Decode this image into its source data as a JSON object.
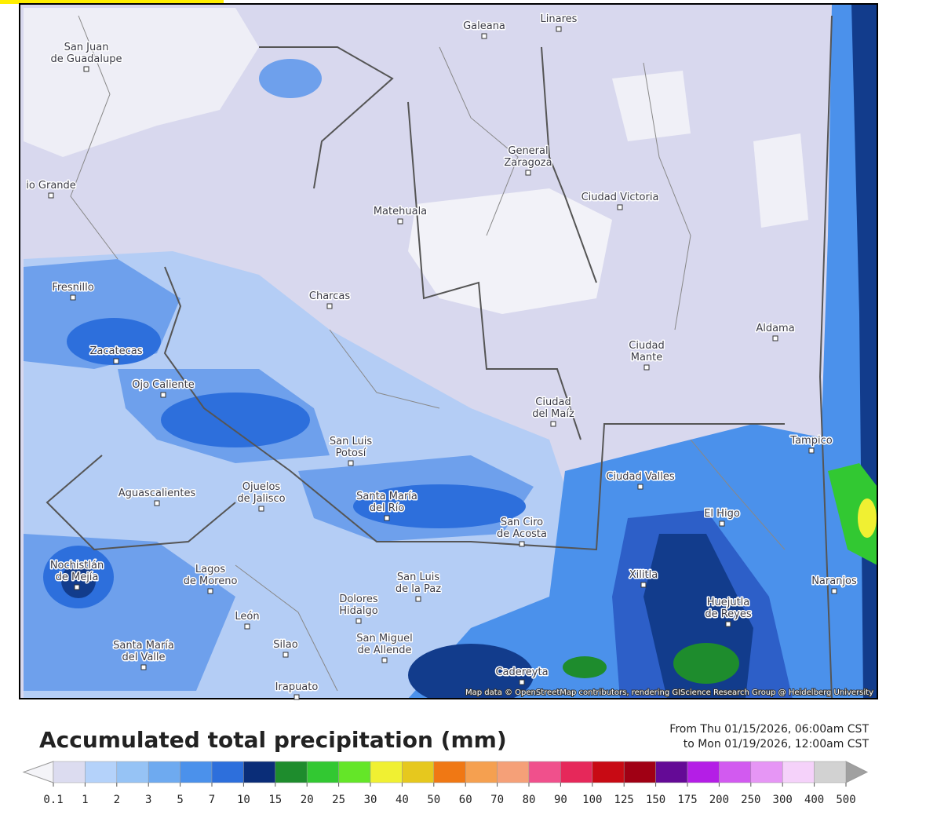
{
  "map": {
    "places": [
      [
        "San Juan",
        "de Guadalupe"
      ],
      [
        "Galeana"
      ],
      [
        "Linares"
      ],
      [
        "General",
        "Zaragoza"
      ],
      [
        "Ciudad Victoria"
      ],
      [
        "io Grande"
      ],
      [
        "Matehuala"
      ],
      [
        "Fresnillo"
      ],
      [
        "Charcas"
      ],
      [
        "Aldama"
      ],
      [
        "Zacatecas"
      ],
      [
        "Ciudad",
        "Mante"
      ],
      [
        "Ojo Caliente"
      ],
      [
        "Ciudad",
        "del Maíz"
      ],
      [
        "San Luis",
        "Potosí"
      ],
      [
        "Tampico"
      ],
      [
        "Ciudad Valles"
      ],
      [
        "Aguascalientes"
      ],
      [
        "Ojuelos",
        "de Jalisco"
      ],
      [
        "Santa María",
        "del Río"
      ],
      [
        "El Higo"
      ],
      [
        "San Ciro",
        "de Acosta"
      ],
      [
        "Nochistlán",
        "de Mejía"
      ],
      [
        "Lagos",
        "de Moreno"
      ],
      [
        "Xilitla"
      ],
      [
        "Naranjos"
      ],
      [
        "San Luis",
        "de la Paz"
      ],
      [
        "Dolores",
        "Hidalgo"
      ],
      [
        "Huejutla",
        "de Reyes"
      ],
      [
        "León"
      ],
      [
        "Santa María",
        "del Valle"
      ],
      [
        "Silao"
      ],
      [
        "San Miguel",
        "de Allende"
      ],
      [
        "Cadereyta"
      ],
      [
        "Irapuato"
      ]
    ],
    "attribution": "Map data © OpenStreetMap contributors, rendering GIScience Research Group @ Heidelberg University"
  },
  "legend": {
    "title": "Accumulated total precipitation (mm)",
    "period": [
      "From Thu 01/15/2026, 06:00am CST",
      "to Mon 01/19/2026, 12:00am CST"
    ],
    "ticks": [
      0.1,
      1,
      2,
      3,
      5,
      7,
      10,
      15,
      20,
      25,
      30,
      40,
      50,
      60,
      70,
      80,
      90,
      100,
      125,
      150,
      175,
      200,
      250,
      300,
      400,
      500
    ],
    "colors": [
      "#dcdcf0",
      "#b4d2fa",
      "#96c3f5",
      "#6eaaf0",
      "#4b91eb",
      "#2d6fdc",
      "#0a2d78",
      "#1e8c2d",
      "#32c832",
      "#64e628",
      "#f0f032",
      "#e6c81e",
      "#f07814",
      "#f5a050",
      "#f5a078",
      "#f0508c",
      "#e6285a",
      "#c80a14",
      "#a00014",
      "#640a96",
      "#b41ee6",
      "#d25af0",
      "#e696f5",
      "#f5d2fa",
      "#d2d2d2"
    ]
  }
}
